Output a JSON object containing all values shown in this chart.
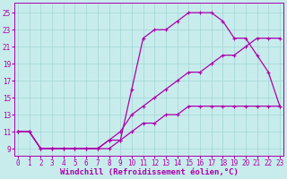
{
  "xlabel": "Windchill (Refroidissement éolien,°C)",
  "background_color": "#c8ecec",
  "grid_color": "#a8d8d8",
  "line_color": "#aa00aa",
  "xlim": [
    -0.3,
    23.3
  ],
  "ylim": [
    8.2,
    26.2
  ],
  "xticks": [
    0,
    1,
    2,
    3,
    4,
    5,
    6,
    7,
    8,
    9,
    10,
    11,
    12,
    13,
    14,
    15,
    16,
    17,
    18,
    19,
    20,
    21,
    22,
    23
  ],
  "yticks": [
    9,
    11,
    13,
    15,
    17,
    19,
    21,
    23,
    25
  ],
  "line1_x": [
    0,
    1,
    2,
    3,
    4,
    5,
    6,
    7,
    8,
    9,
    10,
    11,
    12,
    13,
    14,
    15,
    16,
    17,
    18,
    19,
    20,
    21,
    22,
    23
  ],
  "line1_y": [
    11,
    11,
    9,
    9,
    9,
    9,
    9,
    9,
    9,
    10,
    16,
    22,
    23,
    23,
    24,
    25,
    25,
    25,
    24,
    22,
    22,
    20,
    18,
    14
  ],
  "line2_x": [
    0,
    1,
    2,
    3,
    4,
    5,
    6,
    7,
    8,
    9,
    10,
    11,
    12,
    13,
    14,
    15,
    16,
    17,
    18,
    19,
    20,
    21,
    22,
    23
  ],
  "line2_y": [
    11,
    11,
    9,
    9,
    9,
    9,
    9,
    9,
    10,
    11,
    13,
    14,
    15,
    16,
    17,
    18,
    18,
    19,
    20,
    20,
    21,
    22,
    22,
    22
  ],
  "line3_x": [
    0,
    1,
    2,
    3,
    4,
    5,
    6,
    7,
    8,
    9,
    10,
    11,
    12,
    13,
    14,
    15,
    16,
    17,
    18,
    19,
    20,
    21,
    22,
    23
  ],
  "line3_y": [
    11,
    11,
    9,
    9,
    9,
    9,
    9,
    9,
    10,
    10,
    11,
    12,
    12,
    13,
    13,
    14,
    14,
    14,
    14,
    14,
    14,
    14,
    14,
    14
  ],
  "xlabel_fontsize": 6.5,
  "tick_fontsize": 5.5,
  "figsize": [
    3.2,
    2.0
  ],
  "dpi": 100
}
